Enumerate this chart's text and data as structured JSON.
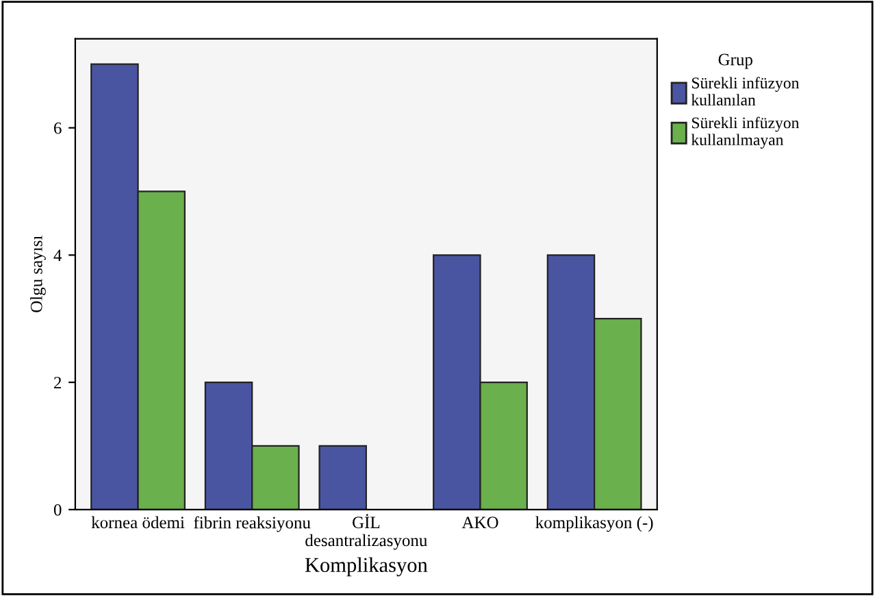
{
  "chart_data": {
    "type": "bar",
    "xlabel": "Komplikasyon",
    "ylabel": "Olgu sayısı",
    "legend_title": "Grup",
    "legend": "top right",
    "categories": [
      "kornea ödemi",
      "fibrin reaksiyonu",
      "GİL\ndesantralizasyonu",
      "AKO",
      "komplikasyon (-)"
    ],
    "series": [
      {
        "name": "Sürekli infüzyon\nkullanılan",
        "color": "#4a55a2",
        "values": [
          7,
          2,
          1,
          4,
          4
        ]
      },
      {
        "name": "Sürekli infüzyon\nkullanılmayan",
        "color": "#6ab04c",
        "values": [
          5,
          1,
          0,
          2,
          3
        ]
      }
    ],
    "ylim": [
      0,
      7.4
    ],
    "yticks": [
      0,
      2,
      4,
      6
    ],
    "grid": false
  }
}
